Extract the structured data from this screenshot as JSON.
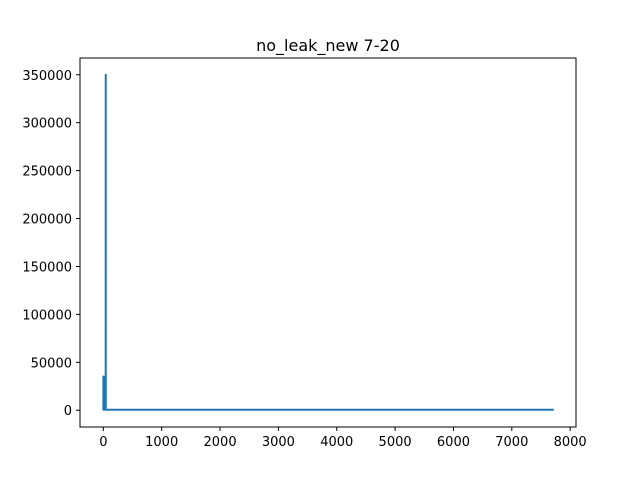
{
  "chart_data": {
    "type": "line",
    "title": "no_leak_new  7-20",
    "xlabel": "",
    "ylabel": "",
    "xlim": [
      -400,
      8100
    ],
    "ylim": [
      -17500,
      367500
    ],
    "grid": false,
    "legend": "none",
    "line_color": "#1f77b4",
    "x_ticks": [
      0,
      1000,
      2000,
      3000,
      4000,
      5000,
      6000,
      7000,
      8000
    ],
    "x_tick_labels": [
      "0",
      "1000",
      "2000",
      "3000",
      "4000",
      "5000",
      "6000",
      "7000",
      "8000"
    ],
    "y_ticks": [
      0,
      50000,
      100000,
      150000,
      200000,
      250000,
      300000,
      350000
    ],
    "y_tick_labels": [
      "0",
      "50000",
      "100000",
      "150000",
      "200000",
      "250000",
      "300000",
      "350000"
    ],
    "series": [
      {
        "x": [
          0,
          1,
          2,
          3,
          4,
          5,
          6,
          7,
          8,
          9,
          10,
          20,
          30,
          40,
          41,
          42,
          50,
          60,
          100,
          500,
          1000,
          3000,
          5000,
          7000,
          7720
        ],
        "y": [
          500,
          35000,
          500,
          35000,
          800,
          35000,
          500,
          35000,
          600,
          35000,
          500,
          600,
          500,
          600,
          350000,
          800,
          600,
          500,
          500,
          500,
          500,
          500,
          500,
          500,
          500
        ]
      }
    ]
  }
}
